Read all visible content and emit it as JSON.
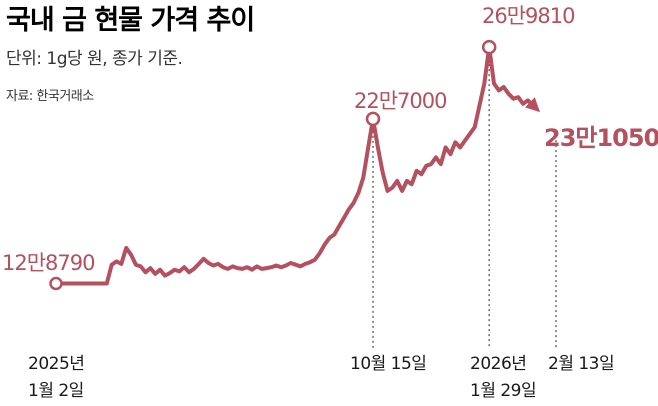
{
  "header": {
    "title": "국내 금 현물 가격 추이",
    "subtitle": "단위: 1g당 원, 종가 기준.",
    "source": "자료: 한국거래소"
  },
  "colors": {
    "line": "#b5505f",
    "text": "#1a1a1a",
    "guide": "#555555"
  },
  "callouts": {
    "start": "12만8790",
    "oct15": "22만7000",
    "peak": "26만9810",
    "end": "23만1050"
  },
  "dates": {
    "d1_year": "2025년",
    "d1_day": "1월 2일",
    "d2": "10월 15일",
    "d3_year": "2026년",
    "d3_day": "1월 29일",
    "d4": "2월 13일"
  },
  "chart_data": {
    "type": "line",
    "title": "국내 금 현물 가격 추이",
    "unit": "1g당 원, 종가 기준",
    "ylim": [
      110000,
      280000
    ],
    "xlim": [
      0,
      100
    ],
    "x_note": "relative time index (2025-01-02 = 0, 2026-02-13 = 100)",
    "series": [
      {
        "values": [
          [
            0,
            128790
          ],
          [
            5,
            128790
          ],
          [
            10,
            128790
          ],
          [
            10.5,
            128790
          ],
          [
            11.5,
            140000
          ],
          [
            12.5,
            142000
          ],
          [
            13.5,
            140500
          ],
          [
            14.5,
            150000
          ],
          [
            15.5,
            146000
          ],
          [
            16.5,
            140000
          ],
          [
            17.5,
            139000
          ],
          [
            18.5,
            135500
          ],
          [
            19.5,
            138000
          ],
          [
            20.5,
            134500
          ],
          [
            21.5,
            137000
          ],
          [
            22.5,
            133500
          ],
          [
            23.5,
            135000
          ],
          [
            24.5,
            137000
          ],
          [
            25.5,
            136000
          ],
          [
            26.5,
            138500
          ],
          [
            27.5,
            135500
          ],
          [
            28.5,
            137500
          ],
          [
            29.5,
            140500
          ],
          [
            30.5,
            143500
          ],
          [
            31.5,
            141000
          ],
          [
            32.5,
            139500
          ],
          [
            33.5,
            140500
          ],
          [
            34.5,
            138500
          ],
          [
            35.5,
            137500
          ],
          [
            36.5,
            139000
          ],
          [
            37.5,
            138000
          ],
          [
            38.5,
            137500
          ],
          [
            39.5,
            138500
          ],
          [
            40.5,
            137000
          ],
          [
            41.5,
            139000
          ],
          [
            42.5,
            137500
          ],
          [
            43.5,
            138000
          ],
          [
            44.5,
            138500
          ],
          [
            45.5,
            139500
          ],
          [
            46.5,
            138500
          ],
          [
            47.5,
            139500
          ],
          [
            48.5,
            141000
          ],
          [
            49.5,
            140000
          ],
          [
            50.5,
            139000
          ],
          [
            51.5,
            140500
          ],
          [
            52.5,
            141500
          ],
          [
            53.5,
            143000
          ],
          [
            54.5,
            147000
          ],
          [
            55.5,
            152000
          ],
          [
            56.5,
            156000
          ],
          [
            57.5,
            158000
          ],
          [
            58.5,
            163000
          ],
          [
            59.5,
            168000
          ],
          [
            60.5,
            173000
          ],
          [
            61.5,
            177000
          ],
          [
            62.5,
            183000
          ],
          [
            63.5,
            192000
          ],
          [
            64.5,
            210000
          ],
          [
            65.5,
            227000
          ],
          [
            66.5,
            210000
          ],
          [
            67.5,
            195000
          ],
          [
            68.5,
            184000
          ],
          [
            69.5,
            186000
          ],
          [
            70.5,
            190000
          ],
          [
            71.5,
            184000
          ],
          [
            72.5,
            190000
          ],
          [
            73.5,
            188000
          ],
          [
            74.5,
            196000
          ],
          [
            75.5,
            194000
          ],
          [
            76.5,
            199000
          ],
          [
            77.5,
            200000
          ],
          [
            78.5,
            204000
          ],
          [
            79.5,
            200000
          ],
          [
            80.5,
            210000
          ],
          [
            81.5,
            206000
          ],
          [
            82.5,
            213000
          ],
          [
            83.5,
            210000
          ],
          [
            84.5,
            214000
          ],
          [
            85.5,
            218000
          ],
          [
            86.5,
            222000
          ],
          [
            87.5,
            235000
          ],
          [
            88.5,
            248000
          ],
          [
            89.5,
            269810
          ],
          [
            90.5,
            248000
          ],
          [
            91.5,
            244000
          ],
          [
            92.5,
            246000
          ],
          [
            93.5,
            242000
          ],
          [
            94.5,
            239000
          ],
          [
            95.5,
            240000
          ],
          [
            96.5,
            236000
          ],
          [
            97.5,
            238000
          ],
          [
            100,
            231050
          ]
        ]
      }
    ],
    "annotations": [
      {
        "label": "12만8790",
        "date": "2025년 1월 2일",
        "value": 128790
      },
      {
        "label": "22만7000",
        "date": "10월 15일",
        "value": 227000
      },
      {
        "label": "26만9810",
        "date": "2026년 1월 29일",
        "value": 269810
      },
      {
        "label": "23만1050",
        "date": "2월 13일",
        "value": 231050
      }
    ]
  }
}
